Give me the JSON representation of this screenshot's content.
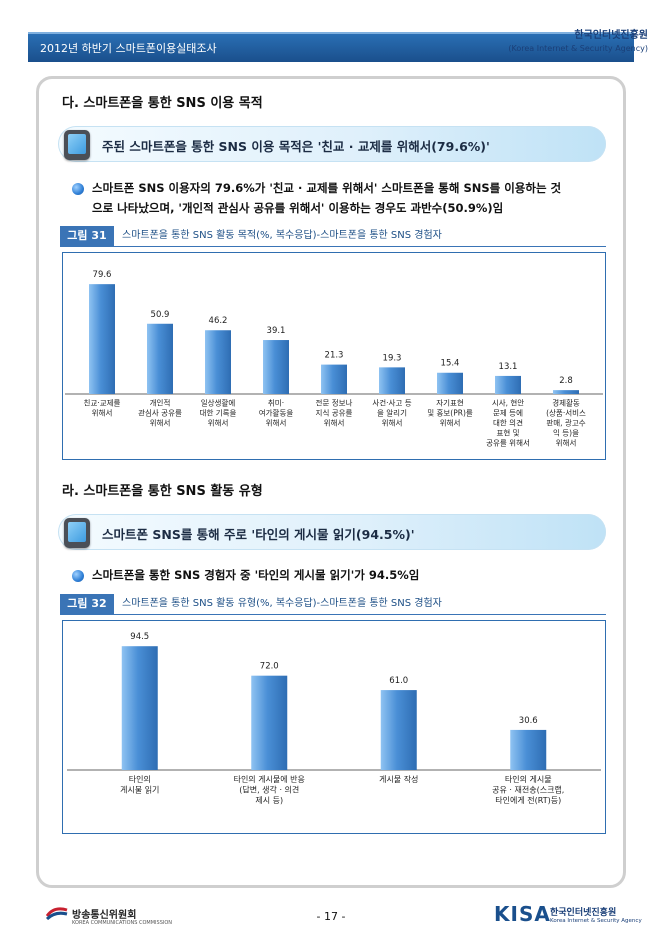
{
  "header": {
    "title": "2012년 하반기 스마트폰이용실태조사",
    "org": "한국인터넷진흥원",
    "org_en": "(Korea Internet & Security Agency)"
  },
  "section1": {
    "heading": "다. 스마트폰을 통한 SNS 이용 목적",
    "banner": "주된 스마트폰을 통한 SNS 이용 목적은 '친교 · 교제를 위해서(79.6%)'",
    "bullet_lines": [
      "스마트폰 SNS 이용자의 79.6%가 '친교 · 교제를 위해서' 스마트폰을 통해 SNS를 이용하는 것",
      "으로 나타났으며, '개인적 관심사 공유를 위해서' 이용하는 경우도 과반수(50.9%)임"
    ],
    "figure_label": "그림 31",
    "figure_caption": "스마트폰을 통한 SNS 활동 목적(%, 복수응답)-스마트폰을 통한 SNS 경험자"
  },
  "section2": {
    "heading": "라. 스마트폰을 통한 SNS 활동 유형",
    "banner": "스마트폰 SNS를 통해 주로 '타인의 게시물 읽기(94.5%)'",
    "bullet_lines": [
      "스마트폰을 통한 SNS 경험자 중 '타인의 게시물 읽기'가 94.5%임"
    ],
    "figure_label": "그림 32",
    "figure_caption": "스마트폰을 통한 SNS 활동 유형(%, 복수응답)-스마트폰을 통한 SNS 경험자"
  },
  "chart_data": [
    {
      "type": "bar",
      "categories": [
        [
          "친교·교제를",
          "위해서"
        ],
        [
          "개인적",
          "관심사 공유를",
          "위해서"
        ],
        [
          "일상생활에",
          "대한 기록을",
          "위해서"
        ],
        [
          "취미·",
          "여가활동을",
          "위해서"
        ],
        [
          "전문 정보나",
          "지식 공유를",
          "위해서"
        ],
        [
          "사건·사고 등",
          "을 알리기",
          "위해서"
        ],
        [
          "자기표현",
          "및 홍보(PR)를",
          "위해서"
        ],
        [
          "시사, 현안",
          "문제 등에",
          "대한 의견",
          "표현 및",
          "공유를 위해서"
        ],
        [
          "경제활동",
          "(상품·서비스",
          "판매, 광고수",
          "익 등)을",
          "위해서"
        ]
      ],
      "values": [
        79.6,
        50.9,
        46.2,
        39.1,
        21.3,
        19.3,
        15.4,
        13.1,
        2.8
      ],
      "value_labels": [
        "79.6",
        "50.9",
        "46.2",
        "39.1",
        "21.3",
        "19.3",
        "15.4",
        "13.1",
        "2.8"
      ],
      "ylim": [
        0,
        100
      ],
      "bar_color": "#4a8fd6"
    },
    {
      "type": "bar",
      "categories": [
        [
          "타인의",
          "게시물 읽기"
        ],
        [
          "타인의 게시물에 반응",
          "(답변, 생각 · 의견",
          "제시 등)"
        ],
        [
          "게시물 작성"
        ],
        [
          "타인의 게시물",
          "공유 · 재전송(스크랩,",
          "타인에게 전(RT)등)"
        ]
      ],
      "values": [
        94.5,
        72.0,
        61.0,
        30.6
      ],
      "value_labels": [
        "94.5",
        "72.0",
        "61.0",
        "30.6"
      ],
      "ylim": [
        0,
        100
      ],
      "bar_color": "#4a8fd6"
    }
  ],
  "footer": {
    "left_org": "방송통신위원회",
    "left_org_en": "KOREA COMMUNICATIONS COMMISSION",
    "page": "- 17 -",
    "logo": "KISA",
    "right_org": "한국인터넷진흥원",
    "right_org_en": "Korea Internet & Security Agency"
  },
  "colors": {
    "header": "#1a4f8c",
    "accent": "#3a74b6"
  }
}
